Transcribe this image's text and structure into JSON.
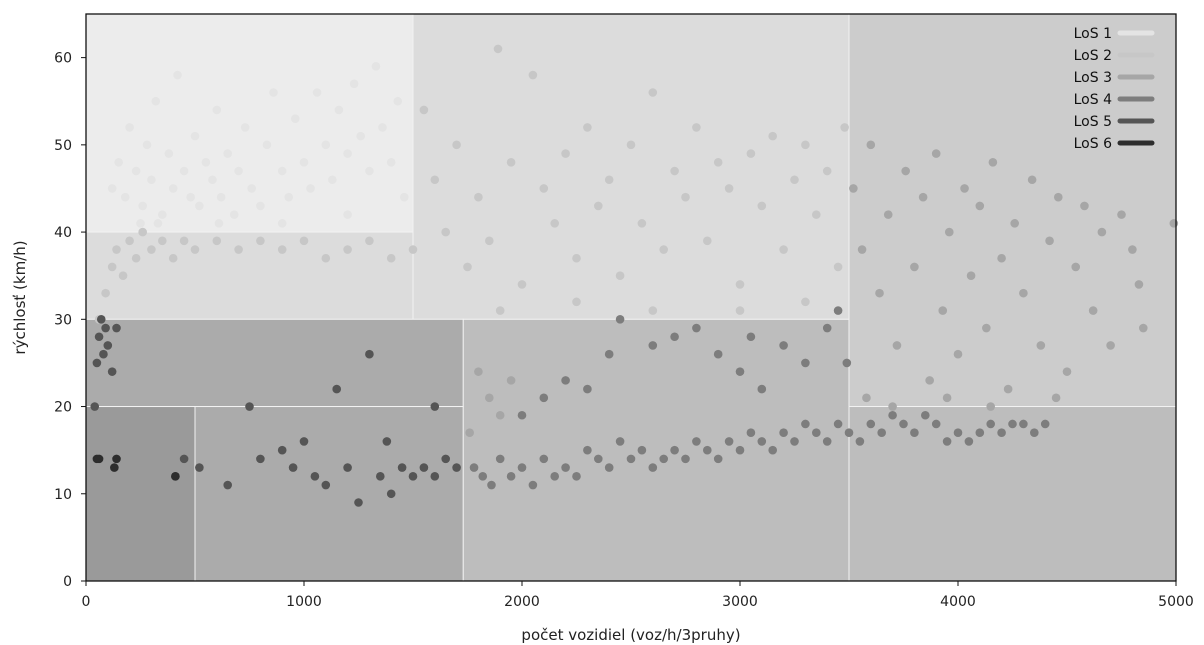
{
  "chart_data": {
    "type": "scatter",
    "title": "",
    "xlabel": "počet vozidiel (voz/h/3pruhy)",
    "ylabel": "rýchlosť (km/h)",
    "xlim": [
      0,
      5000
    ],
    "ylim": [
      0,
      65
    ],
    "xticks": [
      0,
      1000,
      2000,
      3000,
      4000,
      5000
    ],
    "yticks": [
      0,
      10,
      20,
      30,
      40,
      50,
      60
    ],
    "grid": false,
    "legend_position": "top-right",
    "background_zones": [
      {
        "x0": 0,
        "x1": 1500,
        "y0": 40,
        "y1": 65,
        "color": "#ececec"
      },
      {
        "x0": 1500,
        "x1": 3500,
        "y0": 30,
        "y1": 65,
        "color": "#dcdcdc"
      },
      {
        "x0": 0,
        "x1": 1500,
        "y0": 30,
        "y1": 40,
        "color": "#dcdcdc"
      },
      {
        "x0": 3500,
        "x1": 5000,
        "y0": 20,
        "y1": 65,
        "color": "#cccccc"
      },
      {
        "x0": 1730,
        "x1": 3500,
        "y0": 0,
        "y1": 30,
        "color": "#bdbdbd"
      },
      {
        "x0": 3500,
        "x1": 5000,
        "y0": 0,
        "y1": 20,
        "color": "#bdbdbd"
      },
      {
        "x0": 0,
        "x1": 1730,
        "y0": 20,
        "y1": 30,
        "color": "#ababab"
      },
      {
        "x0": 500,
        "x1": 1730,
        "y0": 0,
        "y1": 20,
        "color": "#ababab"
      },
      {
        "x0": 0,
        "x1": 500,
        "y0": 0,
        "y1": 20,
        "color": "#9a9a9a"
      }
    ],
    "series": [
      {
        "name": "LoS 1",
        "color": "#e4e4e4",
        "points": [
          [
            120,
            45
          ],
          [
            150,
            48
          ],
          [
            180,
            44
          ],
          [
            200,
            52
          ],
          [
            230,
            47
          ],
          [
            260,
            43
          ],
          [
            280,
            50
          ],
          [
            300,
            46
          ],
          [
            320,
            55
          ],
          [
            350,
            42
          ],
          [
            380,
            49
          ],
          [
            400,
            45
          ],
          [
            420,
            58
          ],
          [
            450,
            47
          ],
          [
            480,
            44
          ],
          [
            500,
            51
          ],
          [
            520,
            43
          ],
          [
            550,
            48
          ],
          [
            580,
            46
          ],
          [
            600,
            54
          ],
          [
            620,
            44
          ],
          [
            650,
            49
          ],
          [
            680,
            42
          ],
          [
            700,
            47
          ],
          [
            730,
            52
          ],
          [
            760,
            45
          ],
          [
            800,
            43
          ],
          [
            830,
            50
          ],
          [
            860,
            56
          ],
          [
            900,
            47
          ],
          [
            930,
            44
          ],
          [
            960,
            53
          ],
          [
            1000,
            48
          ],
          [
            1030,
            45
          ],
          [
            1060,
            56
          ],
          [
            1100,
            50
          ],
          [
            1130,
            46
          ],
          [
            1160,
            54
          ],
          [
            1200,
            49
          ],
          [
            1230,
            57
          ],
          [
            1260,
            51
          ],
          [
            1300,
            47
          ],
          [
            1330,
            59
          ],
          [
            1360,
            52
          ],
          [
            1400,
            48
          ],
          [
            1430,
            55
          ],
          [
            1460,
            44
          ],
          [
            250,
            41
          ],
          [
            330,
            41
          ],
          [
            610,
            41
          ],
          [
            900,
            41
          ],
          [
            1200,
            42
          ]
        ]
      },
      {
        "name": "LoS 2",
        "color": "#c7c7c7",
        "points": [
          [
            60,
            30
          ],
          [
            90,
            33
          ],
          [
            120,
            36
          ],
          [
            140,
            38
          ],
          [
            170,
            35
          ],
          [
            200,
            39
          ],
          [
            230,
            37
          ],
          [
            260,
            40
          ],
          [
            300,
            38
          ],
          [
            350,
            39
          ],
          [
            400,
            37
          ],
          [
            450,
            39
          ],
          [
            500,
            38
          ],
          [
            600,
            39
          ],
          [
            700,
            38
          ],
          [
            800,
            39
          ],
          [
            900,
            38
          ],
          [
            1000,
            39
          ],
          [
            1100,
            37
          ],
          [
            1200,
            38
          ],
          [
            1300,
            39
          ],
          [
            1400,
            37
          ],
          [
            1500,
            38
          ],
          [
            1550,
            54
          ],
          [
            1600,
            46
          ],
          [
            1650,
            40
          ],
          [
            1700,
            50
          ],
          [
            1750,
            36
          ],
          [
            1800,
            44
          ],
          [
            1850,
            39
          ],
          [
            1890,
            61
          ],
          [
            1950,
            48
          ],
          [
            2000,
            34
          ],
          [
            2050,
            58
          ],
          [
            2100,
            45
          ],
          [
            2150,
            41
          ],
          [
            2200,
            49
          ],
          [
            2250,
            37
          ],
          [
            2300,
            52
          ],
          [
            2350,
            43
          ],
          [
            2400,
            46
          ],
          [
            2450,
            35
          ],
          [
            2500,
            50
          ],
          [
            2550,
            41
          ],
          [
            2600,
            56
          ],
          [
            2650,
            38
          ],
          [
            2700,
            47
          ],
          [
            2750,
            44
          ],
          [
            2800,
            52
          ],
          [
            2850,
            39
          ],
          [
            2900,
            48
          ],
          [
            2950,
            45
          ],
          [
            3000,
            34
          ],
          [
            3050,
            49
          ],
          [
            3100,
            43
          ],
          [
            3150,
            51
          ],
          [
            3200,
            38
          ],
          [
            3250,
            46
          ],
          [
            3300,
            50
          ],
          [
            3350,
            42
          ],
          [
            3400,
            47
          ],
          [
            3450,
            36
          ],
          [
            3480,
            52
          ],
          [
            1900,
            31
          ],
          [
            2250,
            32
          ],
          [
            2600,
            31
          ],
          [
            3000,
            31
          ],
          [
            3300,
            32
          ]
        ]
      },
      {
        "name": "LoS 3",
        "color": "#a6a6a6",
        "points": [
          [
            3520,
            45
          ],
          [
            3560,
            38
          ],
          [
            3600,
            50
          ],
          [
            3640,
            33
          ],
          [
            3680,
            42
          ],
          [
            3720,
            27
          ],
          [
            3760,
            47
          ],
          [
            3800,
            36
          ],
          [
            3840,
            44
          ],
          [
            3870,
            23
          ],
          [
            3900,
            49
          ],
          [
            3930,
            31
          ],
          [
            3960,
            40
          ],
          [
            4000,
            26
          ],
          [
            4030,
            45
          ],
          [
            4060,
            35
          ],
          [
            4100,
            43
          ],
          [
            4130,
            29
          ],
          [
            4160,
            48
          ],
          [
            4200,
            37
          ],
          [
            4230,
            22
          ],
          [
            4260,
            41
          ],
          [
            4300,
            33
          ],
          [
            4340,
            46
          ],
          [
            4380,
            27
          ],
          [
            4420,
            39
          ],
          [
            4460,
            44
          ],
          [
            4500,
            24
          ],
          [
            4540,
            36
          ],
          [
            4580,
            43
          ],
          [
            4620,
            31
          ],
          [
            4660,
            40
          ],
          [
            4700,
            27
          ],
          [
            4750,
            42
          ],
          [
            4800,
            38
          ],
          [
            4830,
            34
          ],
          [
            4850,
            29
          ],
          [
            4990,
            41
          ],
          [
            3580,
            21
          ],
          [
            3700,
            20
          ],
          [
            3950,
            21
          ],
          [
            4150,
            20
          ],
          [
            4450,
            21
          ],
          [
            1760,
            17
          ],
          [
            1800,
            24
          ],
          [
            1850,
            21
          ],
          [
            1900,
            19
          ],
          [
            1950,
            23
          ]
        ]
      },
      {
        "name": "LoS 4",
        "color": "#7d7d7d",
        "points": [
          [
            1780,
            13
          ],
          [
            1820,
            12
          ],
          [
            1860,
            11
          ],
          [
            1900,
            14
          ],
          [
            1950,
            12
          ],
          [
            2000,
            13
          ],
          [
            2050,
            11
          ],
          [
            2100,
            14
          ],
          [
            2150,
            12
          ],
          [
            2200,
            13
          ],
          [
            2250,
            12
          ],
          [
            2300,
            15
          ],
          [
            2350,
            14
          ],
          [
            2400,
            13
          ],
          [
            2450,
            16
          ],
          [
            2500,
            14
          ],
          [
            2550,
            15
          ],
          [
            2600,
            13
          ],
          [
            2650,
            14
          ],
          [
            2700,
            15
          ],
          [
            2750,
            14
          ],
          [
            2800,
            16
          ],
          [
            2850,
            15
          ],
          [
            2900,
            14
          ],
          [
            2950,
            16
          ],
          [
            3000,
            15
          ],
          [
            3050,
            17
          ],
          [
            3100,
            16
          ],
          [
            3150,
            15
          ],
          [
            3200,
            17
          ],
          [
            3250,
            16
          ],
          [
            3300,
            18
          ],
          [
            3350,
            17
          ],
          [
            3400,
            16
          ],
          [
            3450,
            18
          ],
          [
            3500,
            17
          ],
          [
            3550,
            16
          ],
          [
            3600,
            18
          ],
          [
            3650,
            17
          ],
          [
            3700,
            19
          ],
          [
            3750,
            18
          ],
          [
            3800,
            17
          ],
          [
            3850,
            19
          ],
          [
            3900,
            18
          ],
          [
            3950,
            16
          ],
          [
            4000,
            17
          ],
          [
            4050,
            16
          ],
          [
            4100,
            17
          ],
          [
            4150,
            18
          ],
          [
            4200,
            17
          ],
          [
            4250,
            18
          ],
          [
            4300,
            18
          ],
          [
            4350,
            17
          ],
          [
            4400,
            18
          ],
          [
            2000,
            19
          ],
          [
            2100,
            21
          ],
          [
            2200,
            23
          ],
          [
            2300,
            22
          ],
          [
            2400,
            26
          ],
          [
            2450,
            30
          ],
          [
            2600,
            27
          ],
          [
            2700,
            28
          ],
          [
            2800,
            29
          ],
          [
            2900,
            26
          ],
          [
            3000,
            24
          ],
          [
            3050,
            28
          ],
          [
            3100,
            22
          ],
          [
            3200,
            27
          ],
          [
            3300,
            25
          ],
          [
            3400,
            29
          ],
          [
            3450,
            31
          ],
          [
            3490,
            25
          ]
        ]
      },
      {
        "name": "LoS 5",
        "color": "#555555",
        "points": [
          [
            40,
            20
          ],
          [
            50,
            25
          ],
          [
            60,
            28
          ],
          [
            70,
            30
          ],
          [
            80,
            26
          ],
          [
            90,
            29
          ],
          [
            100,
            27
          ],
          [
            120,
            24
          ],
          [
            140,
            29
          ],
          [
            410,
            12
          ],
          [
            450,
            14
          ],
          [
            520,
            13
          ],
          [
            650,
            11
          ],
          [
            750,
            20
          ],
          [
            800,
            14
          ],
          [
            900,
            15
          ],
          [
            950,
            13
          ],
          [
            1000,
            16
          ],
          [
            1050,
            12
          ],
          [
            1100,
            11
          ],
          [
            1150,
            22
          ],
          [
            1200,
            13
          ],
          [
            1250,
            9
          ],
          [
            1300,
            26
          ],
          [
            1350,
            12
          ],
          [
            1400,
            10
          ],
          [
            1450,
            13
          ],
          [
            1500,
            12
          ],
          [
            1550,
            13
          ],
          [
            1600,
            12
          ],
          [
            1650,
            14
          ],
          [
            1700,
            13
          ],
          [
            1600,
            20
          ],
          [
            1380,
            16
          ]
        ]
      },
      {
        "name": "LoS 6",
        "color": "#2d2d2d",
        "points": [
          [
            50,
            14
          ],
          [
            60,
            14
          ],
          [
            130,
            13
          ],
          [
            140,
            14
          ],
          [
            410,
            12
          ]
        ]
      }
    ]
  }
}
